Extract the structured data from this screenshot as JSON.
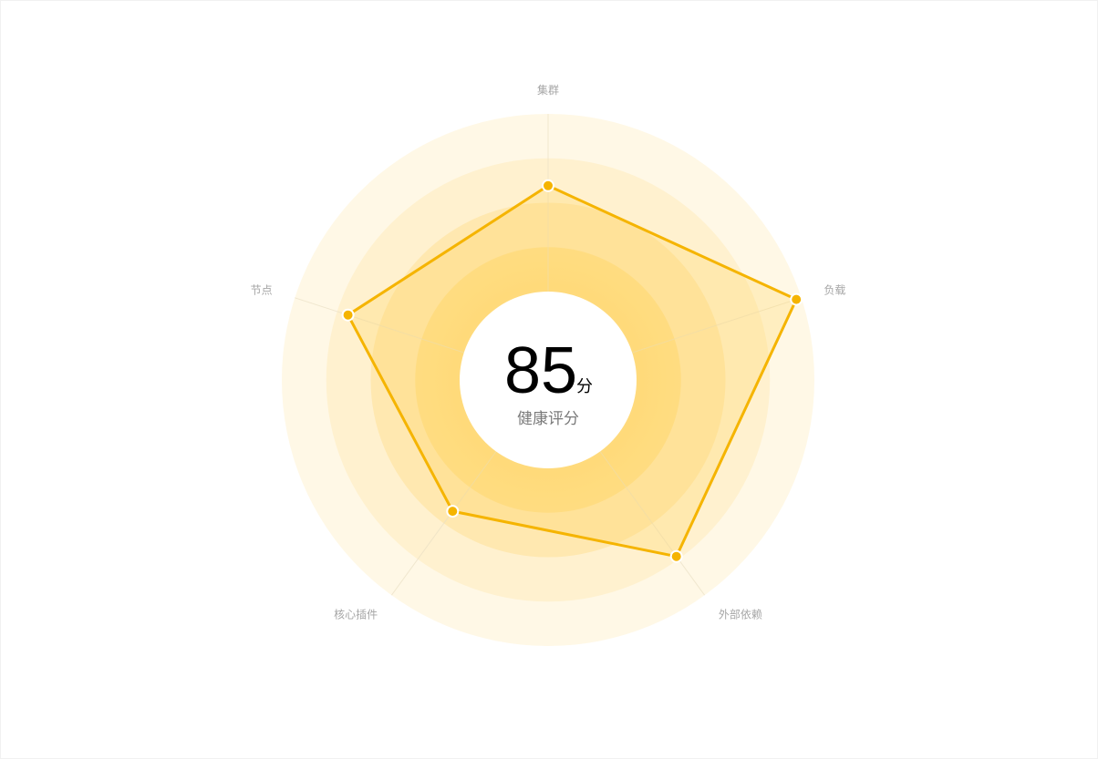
{
  "chart_data": {
    "type": "radar",
    "axes": [
      "集群",
      "负载",
      "外部依赖",
      "核心插件",
      "节点"
    ],
    "values": [
      73,
      98,
      82,
      61,
      79
    ],
    "range": [
      0,
      100
    ],
    "ring_count": 5,
    "line_color": "#f5b400",
    "point_color": "#f5b400",
    "ring_colors": [
      "#fff8e6",
      "#fff1cf",
      "#ffe8b0",
      "#ffe08f",
      "#ffffff"
    ]
  },
  "score": {
    "value": "85",
    "unit": "分",
    "label": "健康评分"
  }
}
